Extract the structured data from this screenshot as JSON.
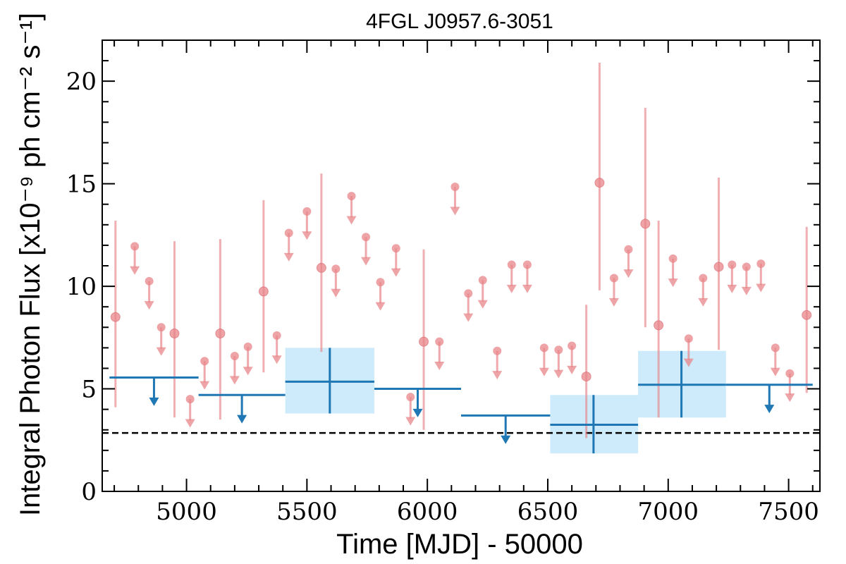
{
  "chart_data": {
    "type": "scatter",
    "title": "4FGL J0957.6-3051",
    "xlabel": "Time [MJD] - 50000",
    "ylabel": "Integral Photon Flux [x10⁻⁹ ph cm⁻² s⁻¹]",
    "xlim": [
      4650,
      7630
    ],
    "ylim": [
      0,
      22
    ],
    "xticks": [
      5000,
      5500,
      6000,
      6500,
      7000,
      7500
    ],
    "yticks": [
      0,
      5,
      10,
      15,
      20
    ],
    "reference_line": 2.85,
    "colors": {
      "short_bins": "#e8858a",
      "long_bins": "#1f77b4",
      "long_bins_error": "#cdebfb",
      "reference": "#000000"
    },
    "series": [
      {
        "detections": [
          {
            "x": 4705,
            "y": 8.5,
            "ylo": 4.1,
            "yhi": 13.2
          },
          {
            "x": 4950,
            "y": 7.7,
            "ylo": 3.6,
            "yhi": 12.2
          },
          {
            "x": 5140,
            "y": 7.7,
            "ylo": 3.5,
            "yhi": 12.3
          },
          {
            "x": 5320,
            "y": 9.75,
            "ylo": 5.8,
            "yhi": 14.2
          },
          {
            "x": 5560,
            "y": 10.9,
            "ylo": 6.8,
            "yhi": 15.5
          },
          {
            "x": 5985,
            "y": 7.3,
            "ylo": 3.0,
            "yhi": 11.8
          },
          {
            "x": 6660,
            "y": 5.6,
            "ylo": 2.6,
            "yhi": 9.1
          },
          {
            "x": 6715,
            "y": 15.05,
            "ylo": 9.8,
            "yhi": 20.9
          },
          {
            "x": 6905,
            "y": 13.05,
            "ylo": 8.0,
            "yhi": 18.7
          },
          {
            "x": 6960,
            "y": 8.1,
            "ylo": 3.6,
            "yhi": 13.2
          },
          {
            "x": 7210,
            "y": 10.95,
            "ylo": 6.9,
            "yhi": 15.3
          },
          {
            "x": 7575,
            "y": 8.6,
            "ylo": 4.8,
            "yhi": 12.9
          }
        ],
        "upper_limits": [
          {
            "x": 4785,
            "y": 11.95
          },
          {
            "x": 4845,
            "y": 10.25
          },
          {
            "x": 4895,
            "y": 8.0
          },
          {
            "x": 5015,
            "y": 4.5
          },
          {
            "x": 5075,
            "y": 6.35
          },
          {
            "x": 5200,
            "y": 6.6
          },
          {
            "x": 5255,
            "y": 7.05
          },
          {
            "x": 5375,
            "y": 7.6
          },
          {
            "x": 5425,
            "y": 12.6
          },
          {
            "x": 5500,
            "y": 13.65
          },
          {
            "x": 5620,
            "y": 10.85
          },
          {
            "x": 5685,
            "y": 14.4
          },
          {
            "x": 5745,
            "y": 12.4
          },
          {
            "x": 5805,
            "y": 10.2
          },
          {
            "x": 5870,
            "y": 11.85
          },
          {
            "x": 5930,
            "y": 4.6
          },
          {
            "x": 6050,
            "y": 7.3
          },
          {
            "x": 6115,
            "y": 14.85
          },
          {
            "x": 6170,
            "y": 9.65
          },
          {
            "x": 6230,
            "y": 10.3
          },
          {
            "x": 6290,
            "y": 6.85
          },
          {
            "x": 6350,
            "y": 11.05
          },
          {
            "x": 6415,
            "y": 11.05
          },
          {
            "x": 6485,
            "y": 7.0
          },
          {
            "x": 6545,
            "y": 6.9
          },
          {
            "x": 6600,
            "y": 7.1
          },
          {
            "x": 6775,
            "y": 10.4
          },
          {
            "x": 6835,
            "y": 11.8
          },
          {
            "x": 7020,
            "y": 11.35
          },
          {
            "x": 7085,
            "y": 7.45
          },
          {
            "x": 7145,
            "y": 10.4
          },
          {
            "x": 7265,
            "y": 11.05
          },
          {
            "x": 7325,
            "y": 10.95
          },
          {
            "x": 7385,
            "y": 11.1
          },
          {
            "x": 7445,
            "y": 7.0
          },
          {
            "x": 7505,
            "y": 5.75
          }
        ]
      },
      {
        "detections": [
          {
            "xlo": 5410,
            "xhi": 5780,
            "x": 5595,
            "y": 5.35,
            "ylo": 3.8,
            "yhi": 7.0
          },
          {
            "xlo": 6510,
            "xhi": 6875,
            "x": 6690,
            "y": 3.25,
            "ylo": 1.85,
            "yhi": 4.7
          },
          {
            "xlo": 6875,
            "xhi": 7240,
            "x": 7055,
            "y": 5.2,
            "ylo": 3.6,
            "yhi": 6.85
          }
        ],
        "upper_limits": [
          {
            "xlo": 4680,
            "xhi": 5050,
            "x": 4865,
            "y": 5.55
          },
          {
            "xlo": 5050,
            "xhi": 5410,
            "x": 5230,
            "y": 4.7
          },
          {
            "xlo": 5780,
            "xhi": 6140,
            "x": 5960,
            "y": 5.0
          },
          {
            "xlo": 6140,
            "xhi": 6510,
            "x": 6325,
            "y": 3.7
          },
          {
            "xlo": 7240,
            "xhi": 7600,
            "x": 7420,
            "y": 5.2
          }
        ]
      }
    ]
  }
}
